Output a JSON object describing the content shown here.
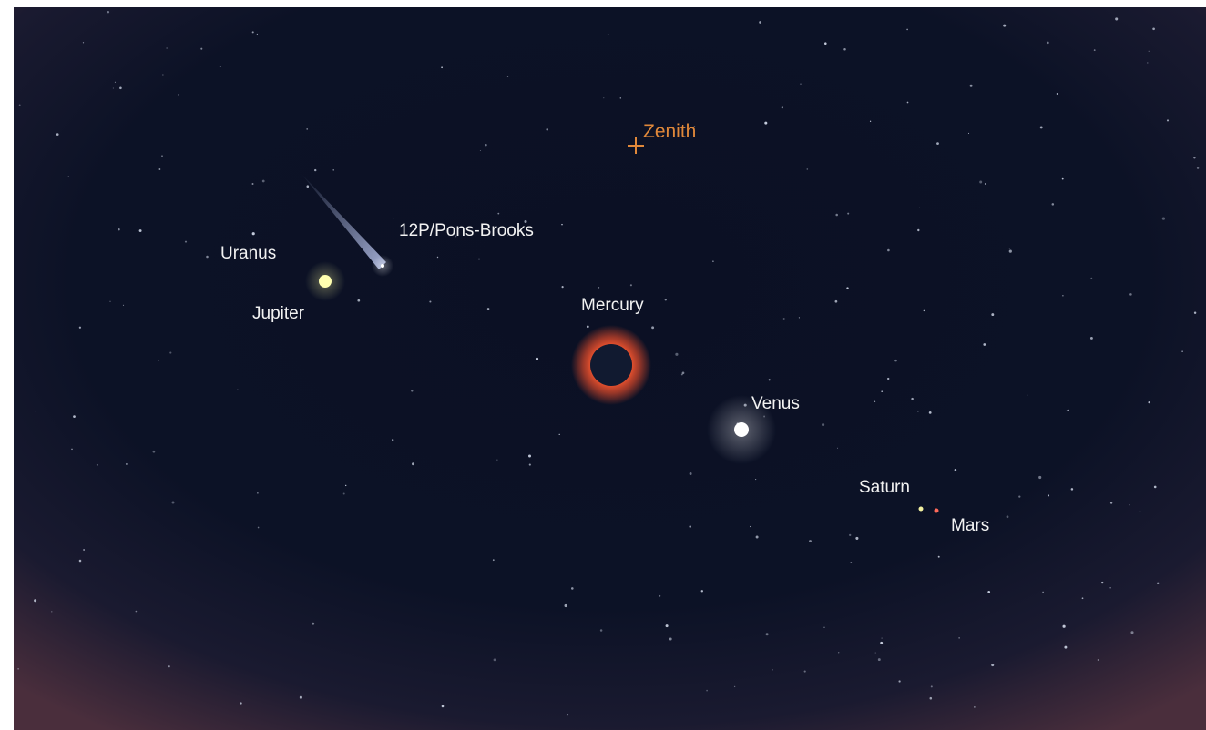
{
  "zenith": "Zenith",
  "objects": [
    {
      "label": "12P/Pons-Brooks"
    },
    {
      "label": "Uranus"
    },
    {
      "label": "Jupiter"
    },
    {
      "label": "Mercury"
    },
    {
      "label": "Venus"
    },
    {
      "label": "Saturn"
    },
    {
      "label": "Mars"
    }
  ]
}
